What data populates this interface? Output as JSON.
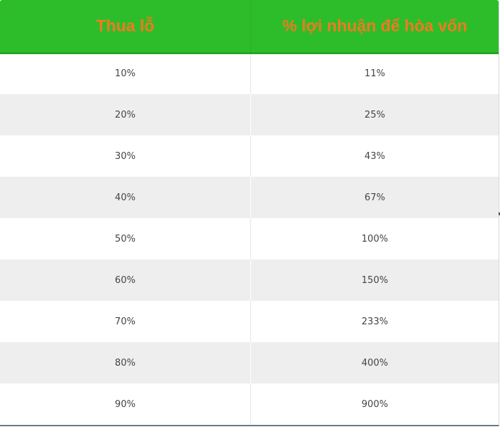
{
  "table": {
    "headers": {
      "loss": "Thua lỗ",
      "profit": "% lợi nhuận để hòa vốn"
    },
    "rows": [
      {
        "loss": "10%",
        "profit": "11%"
      },
      {
        "loss": "20%",
        "profit": "25%"
      },
      {
        "loss": "30%",
        "profit": "43%"
      },
      {
        "loss": "40%",
        "profit": "67%"
      },
      {
        "loss": "50%",
        "profit": "100%"
      },
      {
        "loss": "60%",
        "profit": "150%"
      },
      {
        "loss": "70%",
        "profit": "233%"
      },
      {
        "loss": "80%",
        "profit": "400%"
      },
      {
        "loss": "90%",
        "profit": "900%"
      }
    ]
  },
  "colors": {
    "header_background": "#2dbd2b",
    "header_text": "#f07a1e",
    "row_alt_background": "#eeeeee",
    "cell_text": "#444444"
  }
}
